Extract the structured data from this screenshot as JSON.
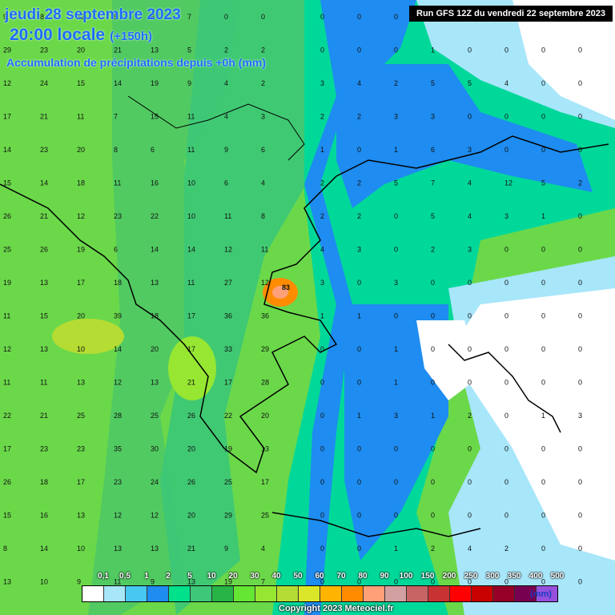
{
  "header": {
    "date": "jeudi 28 septembre 2023",
    "time": "20:00 locale",
    "offset": "(+150h)",
    "subtitle": "Accumulation de précipitations depuis +0h (mm)",
    "run": "Run GFS 12Z du vendredi 22 septembre 2023"
  },
  "legend": {
    "labels": [
      "0,1",
      "0,5",
      "1",
      "2",
      "5",
      "10",
      "20",
      "30",
      "40",
      "50",
      "60",
      "70",
      "80",
      "90",
      "100",
      "150",
      "200",
      "250",
      "300",
      "350",
      "400",
      "500"
    ],
    "colors": [
      "#ffffff",
      "#a8e6fa",
      "#46c8f0",
      "#1e8cf0",
      "#00e18c",
      "#3cc878",
      "#28b446",
      "#64e632",
      "#96e632",
      "#b4dc32",
      "#dce628",
      "#ffb400",
      "#ff8c00",
      "#ffa078",
      "#d2a0a0",
      "#c86464",
      "#c83232",
      "#ff0000",
      "#c80000",
      "#960028",
      "#780050",
      "#9650dc"
    ],
    "unit": "(mm)"
  },
  "copyright": "Copyright 2023 Meteociel.fr",
  "grid_values": [
    [
      "9",
      "8",
      "12",
      "5",
      "6",
      "7",
      "0",
      "0"
    ],
    [
      "29",
      "23",
      "20",
      "21",
      "13",
      "5",
      "2",
      "2"
    ],
    [
      "12",
      "24",
      "15",
      "14",
      "19",
      "9",
      "4",
      "2"
    ],
    [
      "17",
      "21",
      "11",
      "7",
      "15",
      "11",
      "4",
      "3"
    ],
    [
      "14",
      "23",
      "20",
      "8",
      "6",
      "11",
      "9",
      "6"
    ],
    [
      "15",
      "14",
      "18",
      "11",
      "16",
      "10",
      "6",
      "4"
    ],
    [
      "26",
      "21",
      "12",
      "23",
      "22",
      "10",
      "11",
      "8"
    ],
    [
      "25",
      "26",
      "19",
      "6",
      "14",
      "14",
      "12",
      "11"
    ],
    [
      "19",
      "13",
      "17",
      "18",
      "13",
      "11",
      "27",
      "12"
    ],
    [
      "11",
      "15",
      "20",
      "39",
      "18",
      "17",
      "36",
      "36"
    ],
    [
      "12",
      "13",
      "10",
      "14",
      "20",
      "17",
      "33",
      "29"
    ],
    [
      "11",
      "11",
      "13",
      "12",
      "13",
      "21",
      "17",
      "28"
    ],
    [
      "22",
      "21",
      "25",
      "28",
      "25",
      "26",
      "22",
      "20"
    ],
    [
      "17",
      "23",
      "23",
      "35",
      "30",
      "20",
      "19",
      "13"
    ],
    [
      "26",
      "18",
      "17",
      "23",
      "24",
      "26",
      "25",
      "17"
    ],
    [
      "15",
      "16",
      "13",
      "12",
      "12",
      "20",
      "29",
      "25"
    ],
    [
      "8",
      "14",
      "10",
      "13",
      "13",
      "21",
      "9",
      "4"
    ],
    [
      "13",
      "10",
      "9",
      "11",
      "9",
      "13",
      "19",
      "7"
    ]
  ],
  "grid_values_east": [
    [
      "0",
      "0",
      "0",
      "0",
      "0",
      "0",
      "0",
      "0"
    ],
    [
      "0",
      "0",
      "0",
      "1",
      "0",
      "0",
      "0",
      "0"
    ],
    [
      "3",
      "4",
      "2",
      "5",
      "5",
      "4",
      "0",
      "0"
    ],
    [
      "2",
      "2",
      "3",
      "3",
      "0",
      "0",
      "0",
      "0"
    ],
    [
      "1",
      "0",
      "1",
      "6",
      "3",
      "0",
      "0",
      "0"
    ],
    [
      "2",
      "2",
      "5",
      "7",
      "4",
      "12",
      "5",
      "2"
    ],
    [
      "2",
      "2",
      "0",
      "5",
      "4",
      "3",
      "1",
      "0"
    ],
    [
      "4",
      "3",
      "0",
      "2",
      "3",
      "0",
      "0",
      "0"
    ],
    [
      "3",
      "0",
      "3",
      "0",
      "0",
      "0",
      "0",
      "0"
    ],
    [
      "1",
      "1",
      "0",
      "0",
      "0",
      "0",
      "0",
      "0"
    ],
    [
      "0",
      "0",
      "1",
      "0",
      "0",
      "0",
      "0",
      "0"
    ],
    [
      "0",
      "0",
      "1",
      "0",
      "0",
      "0",
      "0",
      "0"
    ],
    [
      "0",
      "1",
      "3",
      "1",
      "2",
      "0",
      "1",
      "3"
    ],
    [
      "0",
      "0",
      "0",
      "0",
      "0",
      "0",
      "0",
      "0"
    ],
    [
      "0",
      "0",
      "0",
      "0",
      "0",
      "0",
      "0",
      "0"
    ],
    [
      "0",
      "0",
      "0",
      "0",
      "0",
      "0",
      "0",
      "0"
    ],
    [
      "0",
      "0",
      "1",
      "2",
      "4",
      "2",
      "0",
      "0"
    ],
    [
      "0",
      "0",
      "0",
      "0",
      "0",
      "0",
      "0",
      "0"
    ]
  ],
  "peak_value": "83"
}
